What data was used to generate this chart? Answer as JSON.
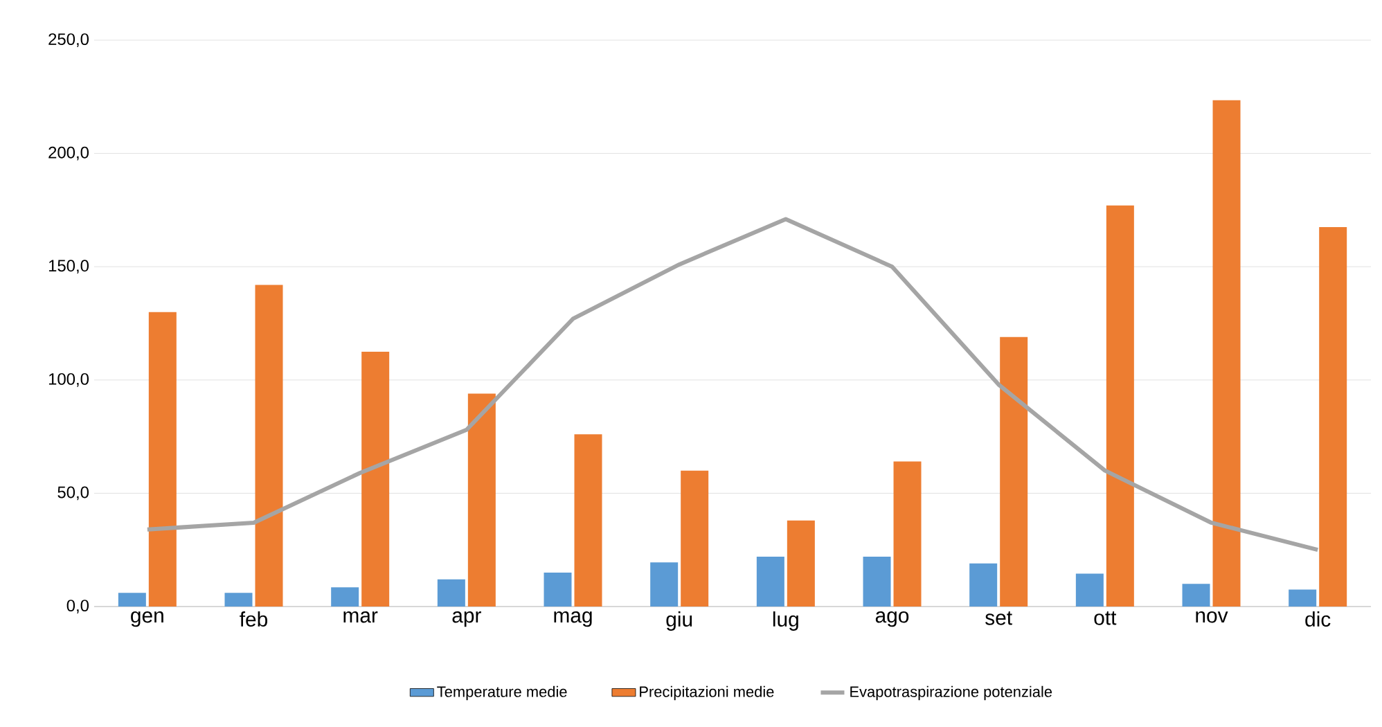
{
  "chart_data": {
    "type": "bar",
    "categories": [
      "gen",
      "feb",
      "mar",
      "apr",
      "mag",
      "giu",
      "lug",
      "ago",
      "set",
      "ott",
      "nov",
      "dic"
    ],
    "series": [
      {
        "name": "Temperature medie",
        "color": "#5b9bd5",
        "values": [
          6,
          6,
          8.5,
          12,
          15,
          19.5,
          22,
          22,
          19,
          14.5,
          10,
          7.5
        ]
      },
      {
        "name": "Precipitazioni medie",
        "color": "#ed7d31",
        "values": [
          130,
          142,
          112.5,
          94,
          76,
          60,
          38,
          64,
          119,
          177,
          223.5,
          167.5
        ]
      },
      {
        "name": "Evapotraspirazione potenziale",
        "type": "line",
        "color": "#a5a5a5",
        "values": [
          34,
          37,
          59,
          78,
          127,
          151,
          171,
          150,
          98,
          60,
          37,
          25
        ]
      }
    ],
    "ylim": [
      0,
      250
    ],
    "yticks": [
      {
        "value": 0,
        "label": "0,0"
      },
      {
        "value": 50,
        "label": "50,0"
      },
      {
        "value": 100,
        "label": "100,0"
      },
      {
        "value": 150,
        "label": "150,0"
      },
      {
        "value": 200,
        "label": "200,0"
      },
      {
        "value": 250,
        "label": "250,0"
      }
    ],
    "grid": "y",
    "legend": "bottom"
  }
}
